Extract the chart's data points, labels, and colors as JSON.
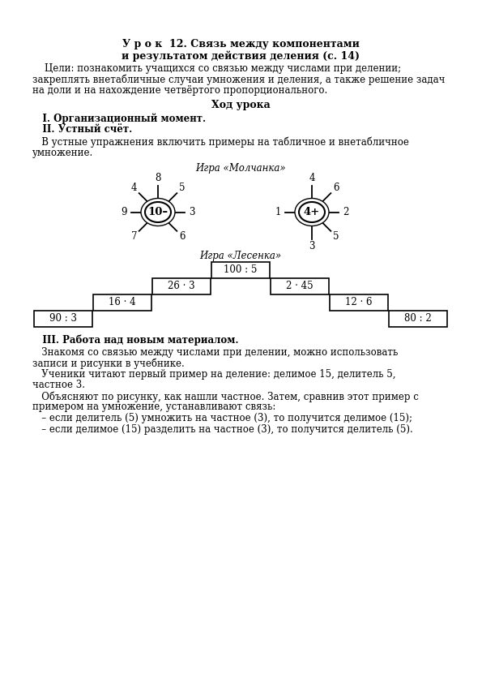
{
  "title_line1": "У р о к  12. Связь между компонентами",
  "title_line2": "и результатом действия деления (с. 14)",
  "para1_lines": [
    "    Цели: познакомить учащихся со связью между числами при делении;",
    "закреплять внетабличные случаи умножения и деления, а также решение задач",
    "на доли и на нахождение четвёртого пропорционального."
  ],
  "section_heading": "Ход урока",
  "item1": "   I. Организационный момент.",
  "item2": "   II. Устный счёт.",
  "item3_lines": [
    "   В устные упражнения включить примеры на табличное и внетабличное",
    "умножение."
  ],
  "game1_title": "Игра «Молчанка»",
  "flower1_center": "10–",
  "flower1_petals": [
    "8",
    "5",
    "3",
    "6",
    "7",
    "9",
    "4"
  ],
  "flower1_angles": [
    90,
    45,
    0,
    -45,
    -135,
    180,
    135
  ],
  "flower2_center": "4+",
  "flower2_petals": [
    "4",
    "6",
    "2",
    "5",
    "3",
    "1"
  ],
  "flower2_angles": [
    90,
    45,
    0,
    -45,
    -90,
    180
  ],
  "game2_title": "Игра «Лесенка»",
  "stair_top": "100 : 5",
  "stair_l2": "26 · 3",
  "stair_r2": "2 · 45",
  "stair_l3": "16 · 4",
  "stair_r3": "12 · 6",
  "stair_l4": "90 : 3",
  "stair_r4": "80 : 2",
  "section3_heading": "   III. Работа над новым материалом.",
  "para3_lines": [
    "   Знакомя со связью между числами при делении, можно использовать",
    "записи и рисунки в учебнике.",
    "   Ученики читают первый пример на деление: делимое 15, делитель 5,",
    "частное 3.",
    "   Объясняют по рисунку, как нашли частное. Затем, сравнив этот пример с",
    "примером на умножение, устанавливают связь:"
  ],
  "bullet1": "   – если делитель (5) умножить на частное (3), то получится делимое (15);",
  "bullet2": "   – если делимое (15) разделить на частное (3), то получится делитель (5)."
}
